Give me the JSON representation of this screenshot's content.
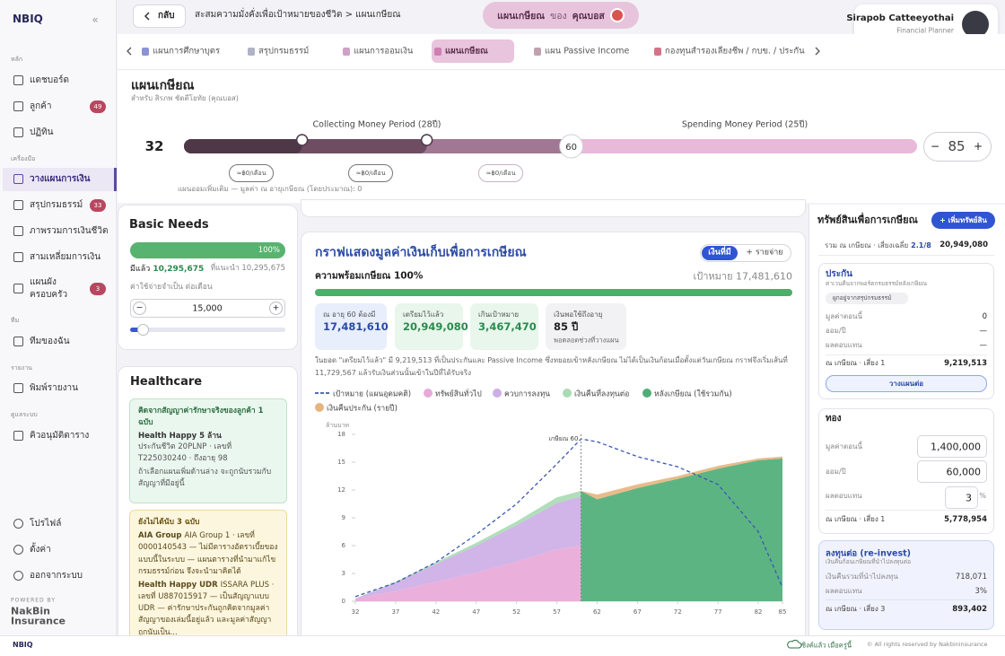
{
  "sidebar": {
    "logo": "NBIQ",
    "collapse": "«",
    "active_item": [
      1,
      0
    ],
    "sections": [
      {
        "title": "หลัก",
        "items": [
          {
            "label": "แดชบอร์ด"
          },
          {
            "label": "ลูกค้า",
            "badge": 49
          },
          {
            "label": "ปฏิทิน"
          }
        ]
      },
      {
        "title": "เครื่องมือ",
        "items": [
          {
            "label": "วางแผนการเงิน"
          },
          {
            "label": "สรุปกรมธรรม์",
            "badge": 33
          },
          {
            "label": "ภาพรวมการเงินชีวิต"
          },
          {
            "label": "สามเหลี่ยมการเงิน"
          },
          {
            "label": [
              "แผนผัง",
              "ครอบครัว"
            ],
            "badge": 3
          }
        ]
      },
      {
        "title": "ทีม",
        "items": [
          {
            "label": "ทีมของฉัน"
          }
        ]
      },
      {
        "title": "รายงาน",
        "items": [
          {
            "label": "พิมพ์รายงาน"
          }
        ]
      },
      {
        "title": "ดูแลระบบ",
        "items": [
          {
            "label": "คิวอนุมัติตาราง"
          }
        ]
      }
    ],
    "bottom": [
      "โปรไฟล์",
      "ตั้งค่า",
      "ออกจากระบบ"
    ],
    "powered_by": "POWERED BY",
    "brand": [
      "NakBin",
      "Insurance"
    ]
  },
  "topbar": {
    "back": "กลับ",
    "breadcrumb": "สะสมความมั่งคั่งเพื่อเป้าหมายของชีวิต > แผนเกษียณ",
    "plan": [
      "แผนเกษียณ",
      "ของ",
      "คุณบอส"
    ],
    "user": {
      "name": "Sirapob Catteeyothai",
      "role": "Financial Planner"
    }
  },
  "tabs": {
    "items": [
      "แผนการศึกษาบุตร",
      "สรุปกรมธรรม์",
      "แผนการออมเงิน",
      "แผนเกษียณ",
      "แผน Passive Income",
      "กองทุนสำรองเลี้ยงชีพ / กบข. / ประกัน"
    ],
    "active": 3
  },
  "header": {
    "title": "แผนเกษียณ",
    "subtitle": "สำหรับ สิรภพ ชัดตีโยทัย (คุณบอส)"
  },
  "timeline": {
    "collecting": "Collecting Money Period (28ปี)",
    "spending": "Spending Money Period (25ปี)",
    "start_age": 32,
    "retire_age": 60,
    "end_age": 85,
    "minus": "−",
    "plus": "+",
    "pills": [
      "≈฿0/เดือน",
      "≈฿0/เดือน",
      "≈฿0/เดือน"
    ],
    "note": "แผนออมเพิ่มเติม — มูลค่า ณ อายุเกษียณ (โดยประมาณ): 0"
  },
  "basic_needs": {
    "title": "Basic Needs",
    "percent": "100%",
    "have_label": "มีแล้ว",
    "have": "10,295,675",
    "recommend": "ที่แนะนำ 10,295,675",
    "expense_label": "ค่าใช้จ่ายจำเป็น ต่อเดือน",
    "expense": "15,000",
    "minus": "−",
    "plus": "+"
  },
  "healthcare": {
    "title": "Healthcare",
    "counted": {
      "heading": "คิดจากสัญญาค่ารักษาจริงของลูกค้า 1 ฉบับ",
      "plan": "Health Happy 5 ล้าน",
      "detail": "ประกันชีวิต 20PLNP · เลขที่ T225030240 · ถึงอายุ 98",
      "note": "ถ้าเลือกแผนเพิ่มด้านล่าง จะถูกนับรวมกับสัญญาที่มีอยู่นี้"
    },
    "not_counted": {
      "heading": "ยังไม่ได้นับ 3 ฉบับ",
      "items": [
        {
          "name": "AIA Group",
          "text": "AIA Group 1 · เลขที่ 0000140543 — ไม่มีตารางอัตราเบี้ยของแบบนี้ในระบบ — แผนตารางที่นำมาแก้ไขกรมธรรม์ก่อน จึงจะนำมาคิดได้"
        },
        {
          "name": "Health Happy UDR",
          "text": "ISSARA PLUS · เลขที่ U887015917 — เป็นสัญญาแบบ UDR — ค่ารักษาประกันถูกคิดจากมูลค่าสัญญาของเล่มนี้อยู่แล้ว และมูลค่าสัญญาถูกนับเป็น..."
        }
      ]
    }
  },
  "main": {
    "title": "กราฟแสดงมูลค่าเงินเก็บเพื่อการเกษียณ",
    "toggle": [
      "เงินที่มี",
      "+ รายจ่าย"
    ],
    "readiness": "ความพร้อมเกษียณ 100%",
    "target": "เป้าหมาย 17,481,610",
    "stats": [
      {
        "label": "ณ อายุ 60 ต้องมี",
        "value": "17,481,610"
      },
      {
        "label": "เตรียมไว้แล้ว",
        "value": "20,949,080"
      },
      {
        "label": "เกินเป้าหมาย",
        "value": "3,467,470"
      },
      {
        "label": "เงินพอใช้ถึงอายุ",
        "value": "85 ปี",
        "sub": "พอตลอดช่วงที่วางแผน"
      }
    ],
    "note": "ในยอด \"เตรียมไว้แล้ว\" มี 9,219,513 ที่เป็นประกันและ Passive Income ซึ่งทยอยเข้าหลังเกษียณ ไม่ได้เป็นเงินก้อนเมื่อตั้งแต่วันเกษียณ กราฟจึงเริ่มเส้นที่ 11,729,567 แล้วรับเงินส่วนนั้นเข้าในปีที่ได้รับจริง"
  },
  "chart_data": {
    "type": "area",
    "y_label": "ล้านบาท",
    "retire_label": "เกษียณ 60",
    "retire_x": 60,
    "x": [
      32,
      37,
      42,
      47,
      52,
      57,
      60,
      62,
      67,
      72,
      77,
      82,
      85
    ],
    "xlim": [
      32,
      85
    ],
    "xticks": [
      32,
      37,
      42,
      47,
      52,
      57,
      62,
      67,
      72,
      77,
      82,
      85
    ],
    "ylim": [
      0,
      18
    ],
    "yticks": [
      0,
      3,
      6,
      9,
      12,
      15,
      18
    ],
    "series": [
      {
        "name": "เป้าหมาย (แผนอุดมคติ)",
        "color": "#3a57b5",
        "style": "dashed",
        "values": [
          0.5,
          2.0,
          4.2,
          7.2,
          10.5,
          14.8,
          17.5,
          17.2,
          15.6,
          14.5,
          12.6,
          7.5,
          1.5
        ]
      },
      {
        "name": "ทรัพย์สินทั่วไป",
        "color": "#e8a9d8",
        "stack": "pre",
        "values": [
          0.3,
          1.1,
          2.1,
          3.1,
          4.3,
          5.6,
          6.0,
          null,
          null,
          null,
          null,
          null,
          null
        ]
      },
      {
        "name": "ควบการลงทุน",
        "color": "#cdaee6",
        "stack": "pre",
        "values": [
          0.0,
          0.9,
          1.9,
          2.9,
          3.9,
          5.0,
          5.3,
          null,
          null,
          null,
          null,
          null,
          null
        ]
      },
      {
        "name": "เงินคืนที่ลงทุนต่อ",
        "color": "#a9dbb4",
        "stack": "pre",
        "values": [
          0.0,
          0.1,
          0.2,
          0.3,
          0.4,
          0.6,
          0.6,
          null,
          null,
          null,
          null,
          null,
          null
        ]
      },
      {
        "name": "หลังเกษียณ (ใช้รวมกัน)",
        "color": "#4fae78",
        "stack": "post",
        "values": [
          null,
          null,
          null,
          null,
          null,
          null,
          11.9,
          11.0,
          12.2,
          13.2,
          14.3,
          15.2,
          15.4
        ]
      },
      {
        "name": "เงินคืนประกัน (รายปี)",
        "color": "#e6b57f",
        "stack": "post",
        "values": [
          null,
          null,
          null,
          null,
          null,
          null,
          0.0,
          0.5,
          0.4,
          0.3,
          0.3,
          0.2,
          0.2
        ]
      }
    ]
  },
  "right_panel": {
    "title": "ทรัพย์สินเพื่อการเกษียณ",
    "add": "+ เพิ่มทรัพย์สิน",
    "summary_label": "รวม ณ เกษียณ · เสี่ยงเฉลี่ย",
    "summary_risk": "2.1/8",
    "summary_value": "20,949,080",
    "cards": [
      {
        "title": "ประกัน",
        "desc": "ค่าเวนคืนจากพอร์ตกรมธรรม์หลังเกษียณ",
        "tag": "ผูกอยู่จากสรุปกรมธรรม์",
        "rows": [
          [
            "มูลค่าตอนนี้",
            "0"
          ],
          [
            "ออม/ปี",
            "—"
          ],
          [
            "ผลตอบแทน",
            "—"
          ]
        ],
        "result_label": "ณ เกษียณ · เสี่ยง 1",
        "result": "9,219,513",
        "action": "วางแผนต่อ"
      },
      {
        "title": "ทอง",
        "rows": [
          [
            "มูลค่าตอนนี้",
            "1,400,000"
          ],
          [
            "ออม/ปี",
            "60,000"
          ],
          [
            "ผลตอบแทน",
            "3"
          ]
        ],
        "unit": "%",
        "result_label": "ณ เกษียณ · เสี่ยง 1",
        "result": "5,778,954"
      },
      {
        "title": "ลงทุนต่อ (re-invest)",
        "desc": "เงินคืนก้อนเกษียณที่นำไปลงทุนต่อ",
        "rows": [
          [
            "เงินคืนรวมที่นำไปลงทุน",
            "718,071"
          ],
          [
            "ผลตอบแทน",
            "3%"
          ]
        ],
        "result_label": "ณ เกษียณ · เสี่ยง 3",
        "result": "893,402"
      }
    ]
  },
  "footer": {
    "logo": "NBIQ",
    "sync": "ซิงค์แล้ว เมื่อครู่นี้",
    "copyright": "© All rights reserved by Nakbininsurance"
  }
}
